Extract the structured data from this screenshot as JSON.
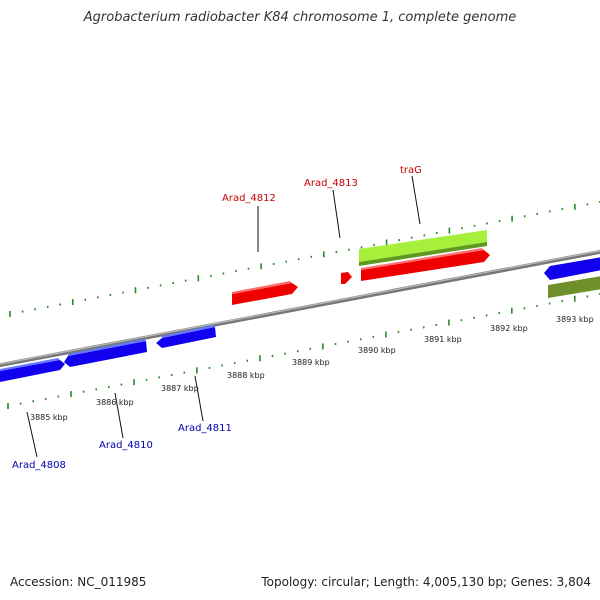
{
  "title": "Agrobacterium radiobacter K84 chromosome 1, complete genome",
  "footer": {
    "accession": "Accession: NC_011985",
    "summary": "Topology: circular; Length: 4,005,130 bp; Genes: 3,804"
  },
  "scale_labels": [
    "3885 kbp",
    "3886 kbp",
    "3887 kbp",
    "3888 kbp",
    "3889 kbp",
    "3890 kbp",
    "3891 kbp",
    "3892 kbp",
    "3893 kbp"
  ],
  "colors": {
    "forward_gene": "#ee0000",
    "reverse_gene": "#0000ee",
    "highlight": "#99ee22",
    "olive": "#6b8e23",
    "backbone": "#888888",
    "ticks": "#2a8a2a",
    "label_forward": "#cc0000",
    "label_reverse": "#0000aa"
  },
  "gene_labels": [
    {
      "name": "Arad_4812",
      "strand": "forward"
    },
    {
      "name": "Arad_4813",
      "strand": "forward"
    },
    {
      "name": "traG",
      "strand": "forward"
    },
    {
      "name": "Arad_4808",
      "strand": "reverse"
    },
    {
      "name": "Arad_4810",
      "strand": "reverse"
    },
    {
      "name": "Arad_4811",
      "strand": "reverse"
    }
  ]
}
